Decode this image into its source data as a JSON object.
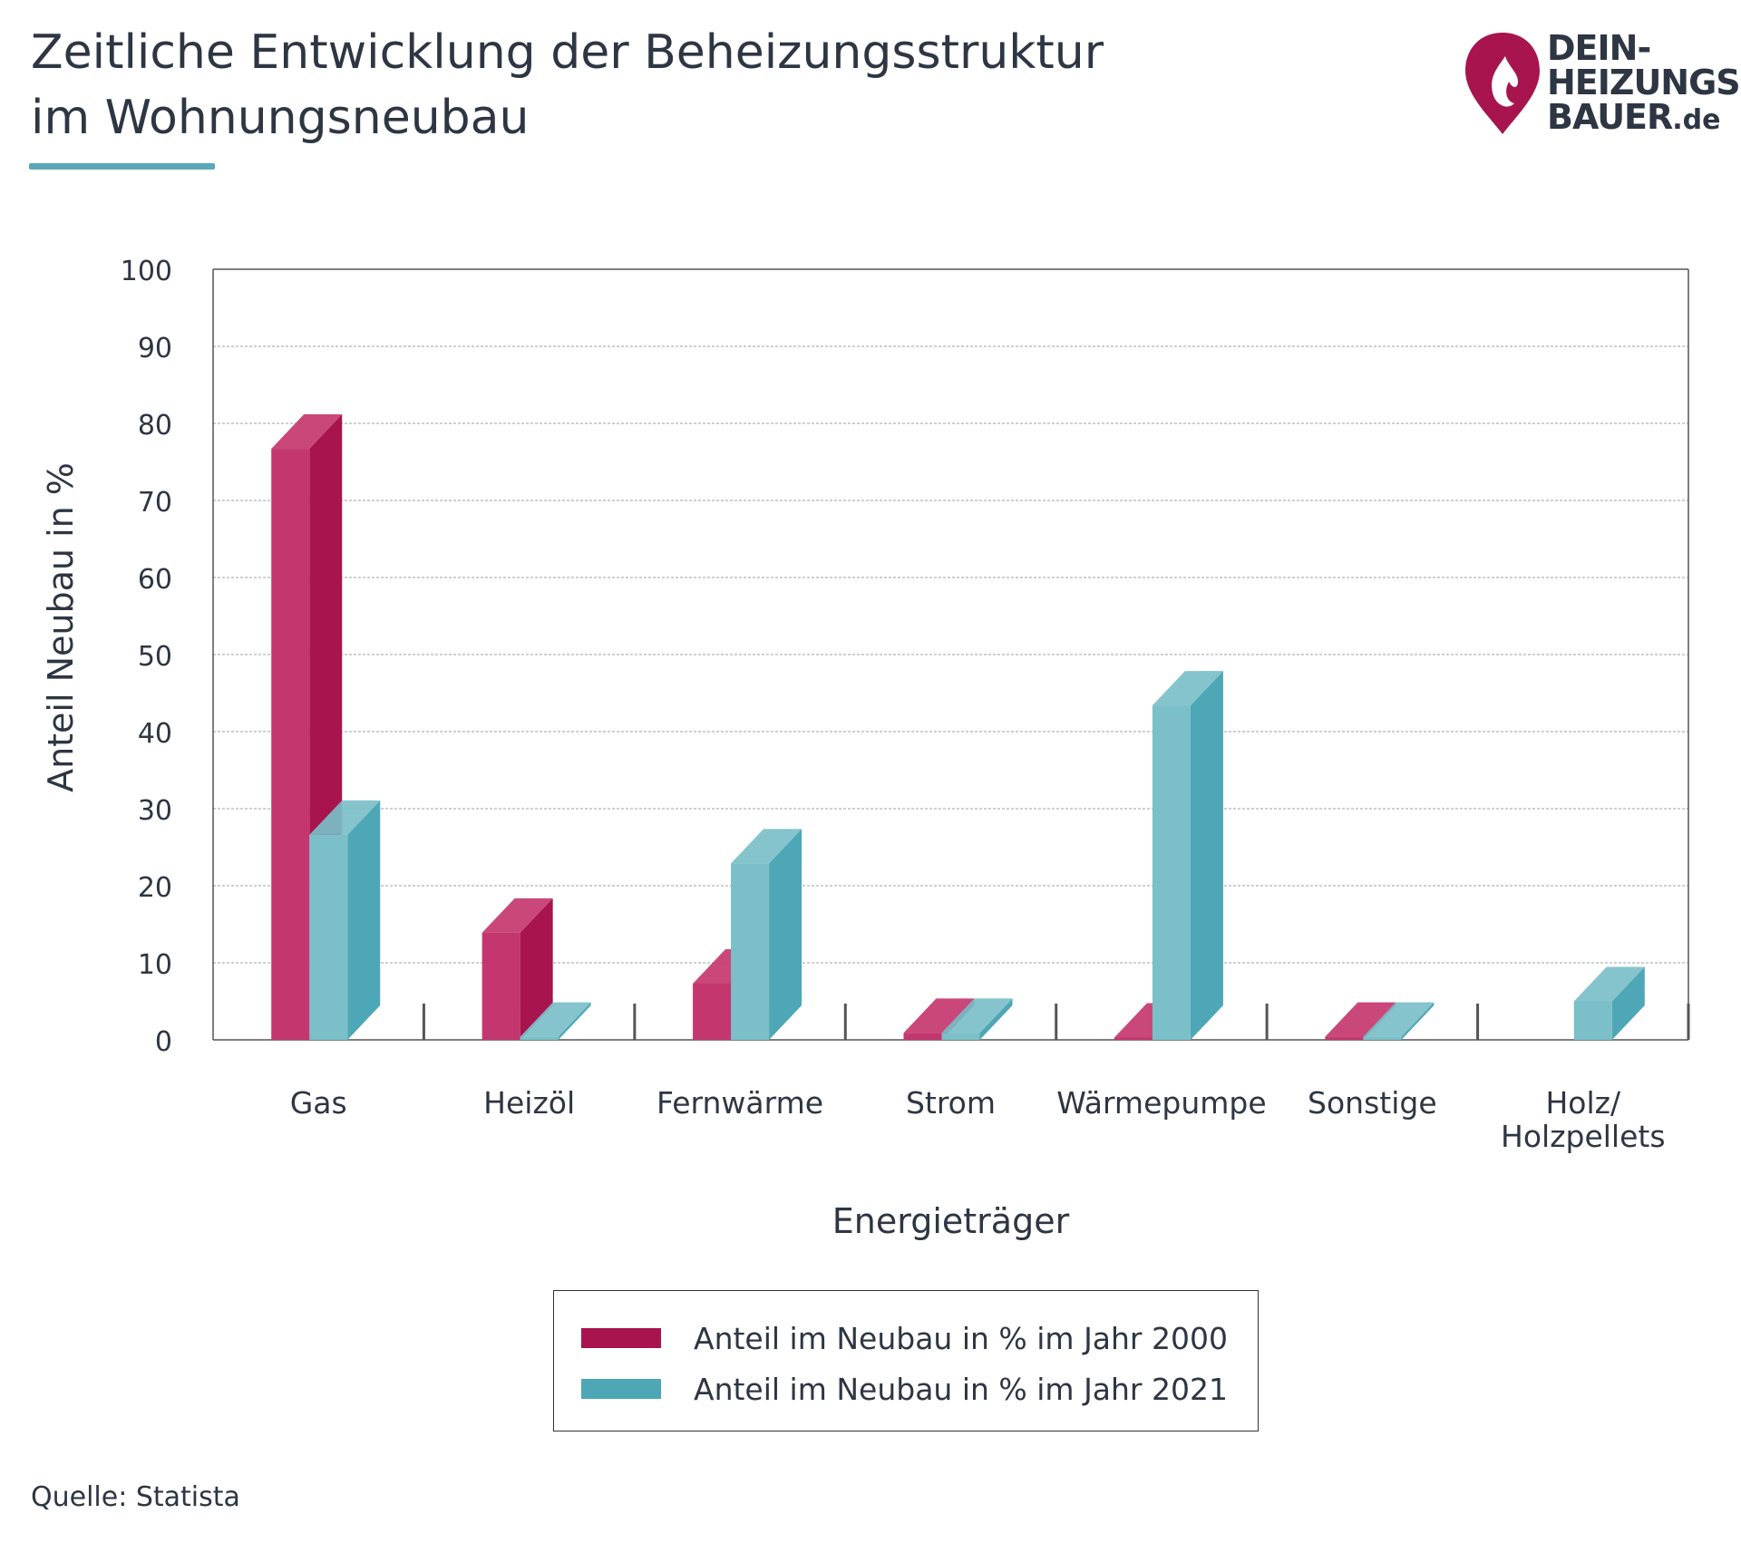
{
  "title": {
    "line1": "Zeitliche Entwicklung der Beheizungsstruktur",
    "line2": "im Wohnungsneubau"
  },
  "logo": {
    "line1": "DEIN-",
    "line2": "HEIZUNGS",
    "line3": "BAUER",
    "domain": ".de"
  },
  "chart_data": {
    "type": "bar",
    "title": "Zeitliche Entwicklung der Beheizungsstruktur im Wohnungsneubau",
    "xlabel": "Energieträger",
    "ylabel": "Anteil Neubau in %",
    "ylim": [
      0,
      100
    ],
    "yticks": [
      0,
      10,
      20,
      30,
      40,
      50,
      60,
      70,
      80,
      90,
      100
    ],
    "grid": true,
    "categories": [
      "Gas",
      "Heizöl",
      "Fernwärme",
      "Strom",
      "Wärmepumpe",
      "Sonstige",
      "Holz/ Holzpellets"
    ],
    "category_lines": [
      [
        "Gas"
      ],
      [
        "Heizöl"
      ],
      [
        "Fernwärme"
      ],
      [
        "Strom"
      ],
      [
        "Wärmepumpe"
      ],
      [
        "Sonstige"
      ],
      [
        "Holz/",
        "Holzpellets"
      ]
    ],
    "series": [
      {
        "name": "Anteil im Neubau in % im Jahr 2000",
        "values": [
          76.7,
          13.9,
          7.3,
          0.9,
          0.3,
          0.4,
          0
        ],
        "color": "#c4376e",
        "side_color": "#a8144d"
      },
      {
        "name": "Anteil im Neubau in % im Jahr 2021",
        "values": [
          26.6,
          0.4,
          22.9,
          0.9,
          43.4,
          0.4,
          5.0
        ],
        "color": "#7bbfc8",
        "side_color": "#4ea7b6"
      }
    ]
  },
  "legend": {
    "items": [
      {
        "label": "Anteil im Neubau in % im Jahr 2000",
        "color": "#a8144d"
      },
      {
        "label": "Anteil im Neubau in % im Jahr 2021",
        "color": "#4ea7b6"
      }
    ]
  },
  "source": "Quelle: Statista",
  "colors": {
    "brand_red": "#a8144d",
    "accent_teal": "#5aa7b6",
    "text": "#2d3642"
  }
}
